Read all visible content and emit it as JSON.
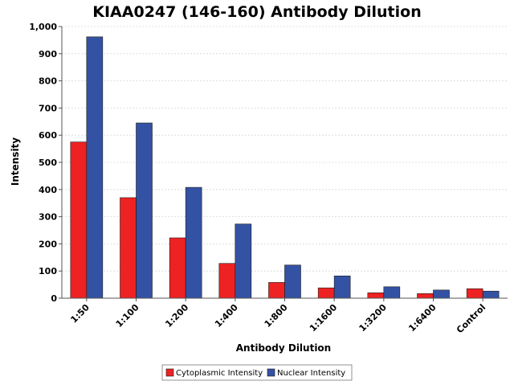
{
  "chart_data": {
    "type": "bar",
    "title": "KIAA0247 (146-160) Antibody Dilution",
    "xlabel": "Antibody Dilution",
    "ylabel": "Intensity",
    "categories": [
      "1:50",
      "1:100",
      "1:200",
      "1:400",
      "1:800",
      "1:1600",
      "1:3200",
      "1:6400",
      "Control"
    ],
    "series": [
      {
        "name": "Cytoplasmic Intensity",
        "color": "#ee2222",
        "values": [
          575,
          370,
          222,
          128,
          58,
          38,
          20,
          17,
          35
        ]
      },
      {
        "name": "Nuclear Intensity",
        "color": "#3452a4",
        "values": [
          962,
          645,
          408,
          273,
          122,
          82,
          42,
          30,
          26
        ]
      }
    ],
    "ylim": [
      0,
      1000
    ],
    "yticks": [
      0,
      100,
      200,
      300,
      400,
      500,
      600,
      700,
      800,
      900,
      1000
    ],
    "ytick_labels": [
      "0",
      "100",
      "200",
      "300",
      "400",
      "500",
      "600",
      "700",
      "800",
      "900",
      "1,000"
    ],
    "grid": true,
    "legend_position": "bottom-center"
  }
}
